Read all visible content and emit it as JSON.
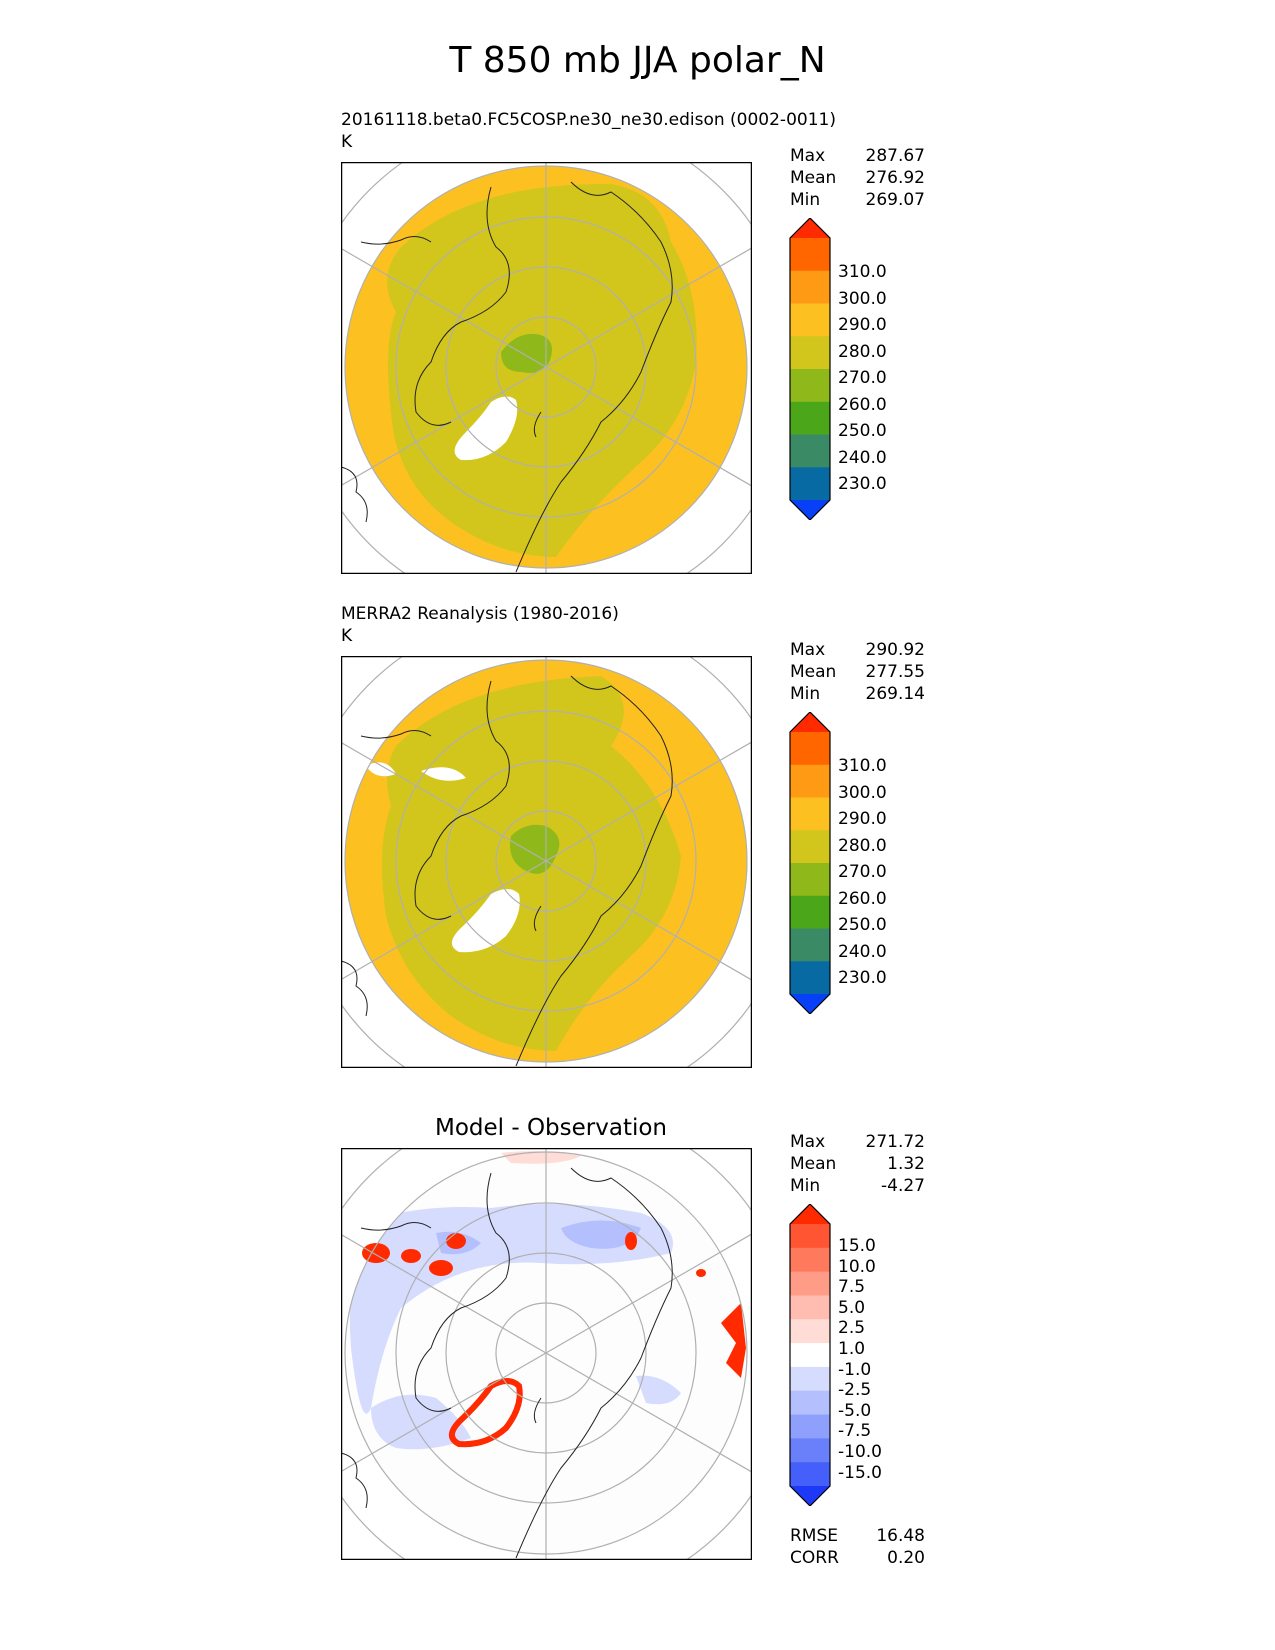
{
  "title": "T 850 mb JJA polar_N",
  "panels": [
    {
      "name": "test",
      "heading": "",
      "subtitle": "20161118.beta0.FC5COSP.ne30_ne30.edison (0002-0011)",
      "units": "K",
      "stats": [
        {
          "label": "Max",
          "value": "287.67"
        },
        {
          "label": "Mean",
          "value": "276.92"
        },
        {
          "label": "Min",
          "value": "269.07"
        }
      ],
      "colorbar": {
        "labels": [
          "310.0",
          "300.0",
          "290.0",
          "280.0",
          "270.0",
          "260.0",
          "250.0",
          "240.0",
          "230.0"
        ],
        "colors": [
          "#ff2a00",
          "#ff6600",
          "#ff9a14",
          "#fcc021",
          "#d2c61d",
          "#8fb91a",
          "#4ba61a",
          "#3b8a66",
          "#086aa2",
          "#0840f8"
        ]
      }
    },
    {
      "name": "reference",
      "heading": "",
      "subtitle": "MERRA2 Reanalysis (1980-2016)",
      "units": "K",
      "stats": [
        {
          "label": "Max",
          "value": "290.92"
        },
        {
          "label": "Mean",
          "value": "277.55"
        },
        {
          "label": "Min",
          "value": "269.14"
        }
      ],
      "colorbar": {
        "labels": [
          "310.0",
          "300.0",
          "290.0",
          "280.0",
          "270.0",
          "260.0",
          "250.0",
          "240.0",
          "230.0"
        ],
        "colors": [
          "#ff2a00",
          "#ff6600",
          "#ff9a14",
          "#fcc021",
          "#d2c61d",
          "#8fb91a",
          "#4ba61a",
          "#3b8a66",
          "#086aa2",
          "#0840f8"
        ]
      }
    },
    {
      "name": "difference",
      "heading": "Model - Observation",
      "subtitle": "",
      "units": "",
      "stats": [
        {
          "label": "Max",
          "value": "271.72"
        },
        {
          "label": "Mean",
          "value": "1.32"
        },
        {
          "label": "Min",
          "value": "-4.27"
        }
      ],
      "colorbar": {
        "labels": [
          "15.0",
          "10.0",
          "7.5",
          "5.0",
          "2.5",
          "1.0",
          "-1.0",
          "-2.5",
          "-5.0",
          "-7.5",
          "-10.0",
          "-15.0"
        ],
        "colors": [
          "#ff2a00",
          "#ff5533",
          "#ff7a5c",
          "#ff9c88",
          "#ffbcb0",
          "#ffdcd6",
          "#ffffff",
          "#d6dcfe",
          "#b4c0fd",
          "#8fa0fc",
          "#6a80fb",
          "#4560fa",
          "#1e38f8"
        ]
      },
      "metrics": [
        {
          "label": "RMSE",
          "value": "16.48"
        },
        {
          "label": "CORR",
          "value": "0.20"
        }
      ]
    }
  ],
  "chart_data": [
    {
      "type": "heatmap",
      "projection": "north polar stereographic",
      "title": "20161118.beta0.FC5COSP.ne30_ne30.edison (0002-0011)",
      "units": "K",
      "max": 287.67,
      "mean": 276.92,
      "min": 269.07,
      "levels": [
        230,
        240,
        250,
        260,
        270,
        280,
        290,
        300,
        310
      ]
    },
    {
      "type": "heatmap",
      "projection": "north polar stereographic",
      "title": "MERRA2 Reanalysis (1980-2016)",
      "units": "K",
      "max": 290.92,
      "mean": 277.55,
      "min": 269.14,
      "levels": [
        230,
        240,
        250,
        260,
        270,
        280,
        290,
        300,
        310
      ]
    },
    {
      "type": "heatmap",
      "projection": "north polar stereographic",
      "title": "Model - Observation",
      "max": 271.72,
      "mean": 1.32,
      "min": -4.27,
      "levels": [
        -15,
        -10,
        -7.5,
        -5,
        -2.5,
        -1,
        1,
        2.5,
        5,
        7.5,
        10,
        15
      ],
      "rmse": 16.48,
      "corr": 0.2
    }
  ]
}
